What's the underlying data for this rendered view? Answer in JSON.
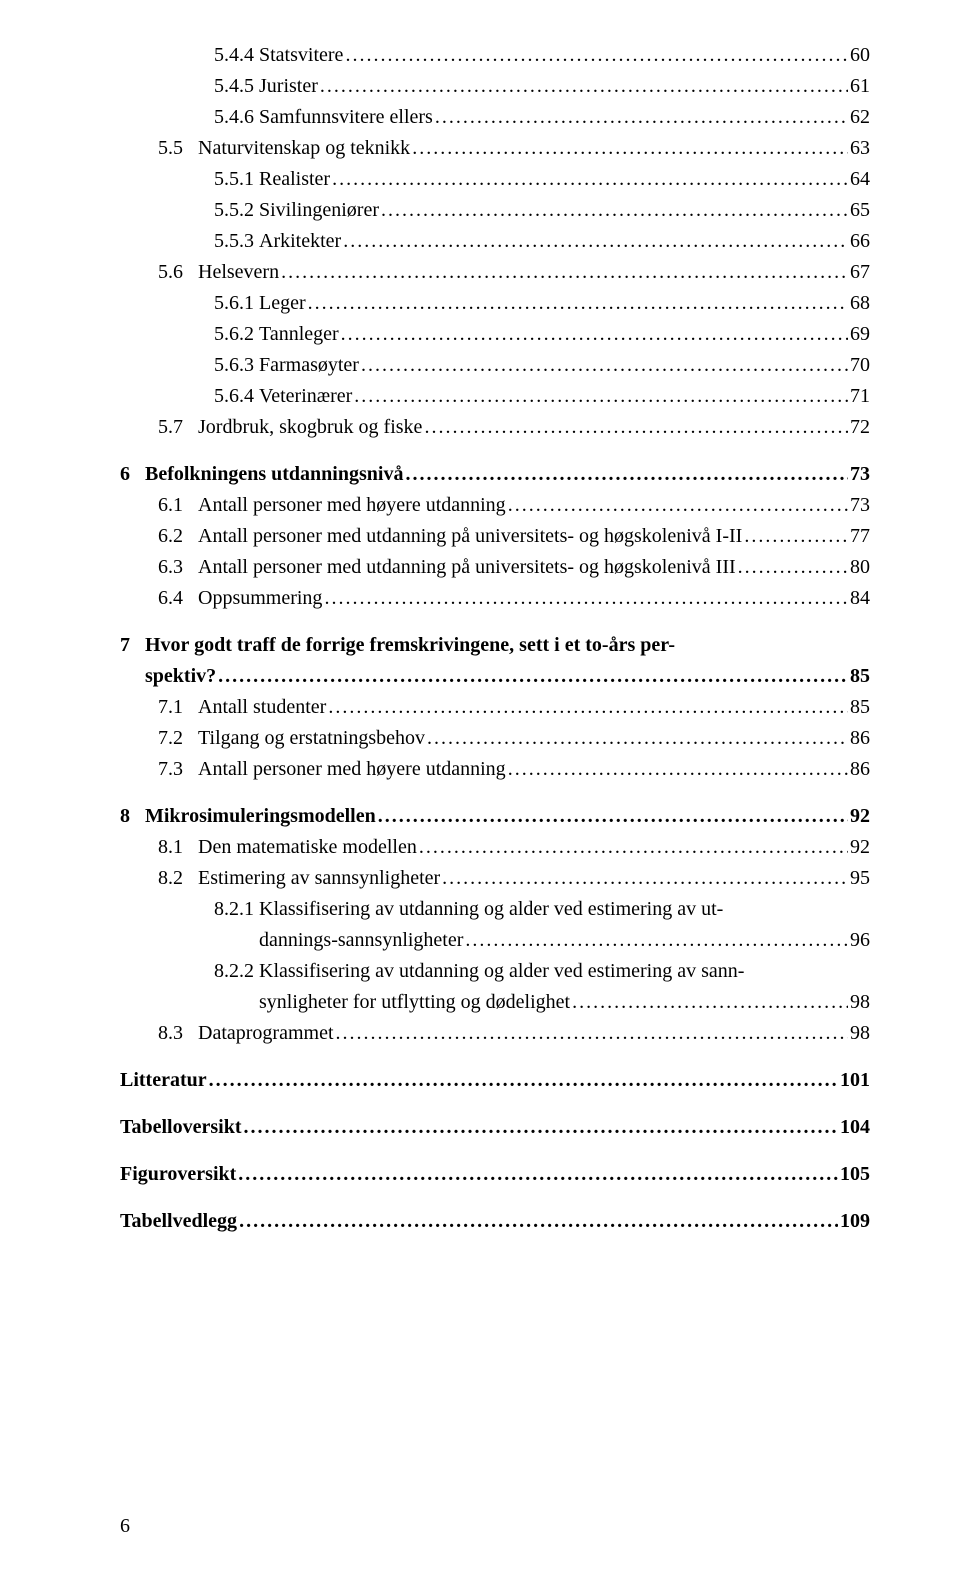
{
  "entries": [
    {
      "type": "line",
      "indent": 3,
      "num": "5.4.4",
      "title": "Statsvitere",
      "page": "60",
      "bold": false
    },
    {
      "type": "line",
      "indent": 3,
      "num": "5.4.5",
      "title": "Jurister",
      "page": "61",
      "bold": false
    },
    {
      "type": "line",
      "indent": 3,
      "num": "5.4.6",
      "title": "Samfunnsvitere ellers",
      "page": "62",
      "bold": false
    },
    {
      "type": "line",
      "indent": 2,
      "num": "5.5",
      "title": "Naturvitenskap og teknikk",
      "page": "63",
      "bold": false,
      "pad": true
    },
    {
      "type": "line",
      "indent": 3,
      "num": "5.5.1",
      "title": "Realister",
      "page": "64",
      "bold": false
    },
    {
      "type": "line",
      "indent": 3,
      "num": "5.5.2",
      "title": "Sivilingeniører",
      "page": "65",
      "bold": false
    },
    {
      "type": "line",
      "indent": 3,
      "num": "5.5.3",
      "title": "Arkitekter",
      "page": "66",
      "bold": false
    },
    {
      "type": "line",
      "indent": 2,
      "num": "5.6",
      "title": "Helsevern",
      "page": "67",
      "bold": false,
      "pad": true
    },
    {
      "type": "line",
      "indent": 3,
      "num": "5.6.1",
      "title": "Leger",
      "page": "68",
      "bold": false
    },
    {
      "type": "line",
      "indent": 3,
      "num": "5.6.2",
      "title": "Tannleger",
      "page": "69",
      "bold": false
    },
    {
      "type": "line",
      "indent": 3,
      "num": "5.6.3",
      "title": "Farmasøyter",
      "page": "70",
      "bold": false
    },
    {
      "type": "line",
      "indent": 3,
      "num": "5.6.4",
      "title": "Veterinærer",
      "page": "71",
      "bold": false
    },
    {
      "type": "line",
      "indent": 2,
      "num": "5.7",
      "title": "Jordbruk, skogbruk og fiske",
      "page": "72",
      "bold": false,
      "pad": true
    },
    {
      "type": "spacer"
    },
    {
      "type": "line",
      "indent": 0,
      "num": "6",
      "title": "Befolkningens utdanningsnivå",
      "page": "73",
      "bold": true,
      "pad": true
    },
    {
      "type": "line",
      "indent": 2,
      "num": "6.1",
      "title": "Antall personer med høyere utdanning",
      "page": "73",
      "bold": false,
      "pad": true
    },
    {
      "type": "line",
      "indent": 2,
      "num": "6.2",
      "title": "Antall personer med utdanning på universitets- og høgskolenivå I-II",
      "page": "77",
      "bold": false,
      "pad": true
    },
    {
      "type": "line",
      "indent": 2,
      "num": "6.3",
      "title": "Antall personer med utdanning på universitets- og høgskolenivå III",
      "page": "80",
      "bold": false,
      "pad": true
    },
    {
      "type": "line",
      "indent": 2,
      "num": "6.4",
      "title": "Oppsummering",
      "page": "84",
      "bold": false,
      "pad": true
    },
    {
      "type": "spacer"
    },
    {
      "type": "multi",
      "indent": 0,
      "num": "7",
      "line1": "Hvor godt traff de forrige fremskrivingene, sett i et to-års per-",
      "line2": "spektiv?",
      "page": "85",
      "bold": true,
      "pad": true
    },
    {
      "type": "line",
      "indent": 2,
      "num": "7.1",
      "title": "Antall studenter",
      "page": "85",
      "bold": false,
      "pad": true
    },
    {
      "type": "line",
      "indent": 2,
      "num": "7.2",
      "title": "Tilgang og erstatningsbehov",
      "page": "86",
      "bold": false,
      "pad": true
    },
    {
      "type": "line",
      "indent": 2,
      "num": "7.3",
      "title": "Antall personer med høyere utdanning",
      "page": "86",
      "bold": false,
      "pad": true
    },
    {
      "type": "spacer"
    },
    {
      "type": "line",
      "indent": 0,
      "num": "8",
      "title": "Mikrosimuleringsmodellen",
      "page": "92",
      "bold": true,
      "pad": true
    },
    {
      "type": "line",
      "indent": 2,
      "num": "8.1",
      "title": "Den matematiske modellen",
      "page": "92",
      "bold": false,
      "pad": true
    },
    {
      "type": "line",
      "indent": 2,
      "num": "8.2",
      "title": "Estimering av sannsynligheter",
      "page": "95",
      "bold": false,
      "pad": true
    },
    {
      "type": "multi",
      "indent": 3,
      "num": "8.2.1",
      "line1": "Klassifisering av utdanning og alder ved estimering av ut-",
      "line2": "dannings-sannsynligheter",
      "page": "96",
      "bold": false
    },
    {
      "type": "multi",
      "indent": 3,
      "num": "8.2.2",
      "line1": "Klassifisering av utdanning og alder ved estimering av sann-",
      "line2": "synligheter for utflytting og dødelighet",
      "page": "98",
      "bold": false
    },
    {
      "type": "line",
      "indent": 2,
      "num": "8.3",
      "title": "Dataprogrammet",
      "page": "98",
      "bold": false,
      "pad": true
    },
    {
      "type": "spacer"
    },
    {
      "type": "line",
      "indent": 0,
      "num": "",
      "title": "Litteratur",
      "page": "101",
      "bold": true
    },
    {
      "type": "spacer"
    },
    {
      "type": "line",
      "indent": 0,
      "num": "",
      "title": "Tabelloversikt",
      "page": "104",
      "bold": true
    },
    {
      "type": "spacer"
    },
    {
      "type": "line",
      "indent": 0,
      "num": "",
      "title": "Figuroversikt",
      "page": "105",
      "bold": true
    },
    {
      "type": "spacer"
    },
    {
      "type": "line",
      "indent": 0,
      "num": "",
      "title": "Tabellvedlegg",
      "page": "109",
      "bold": true
    }
  ],
  "footer": "6",
  "dots": "...................................................................................................................................................................................................."
}
